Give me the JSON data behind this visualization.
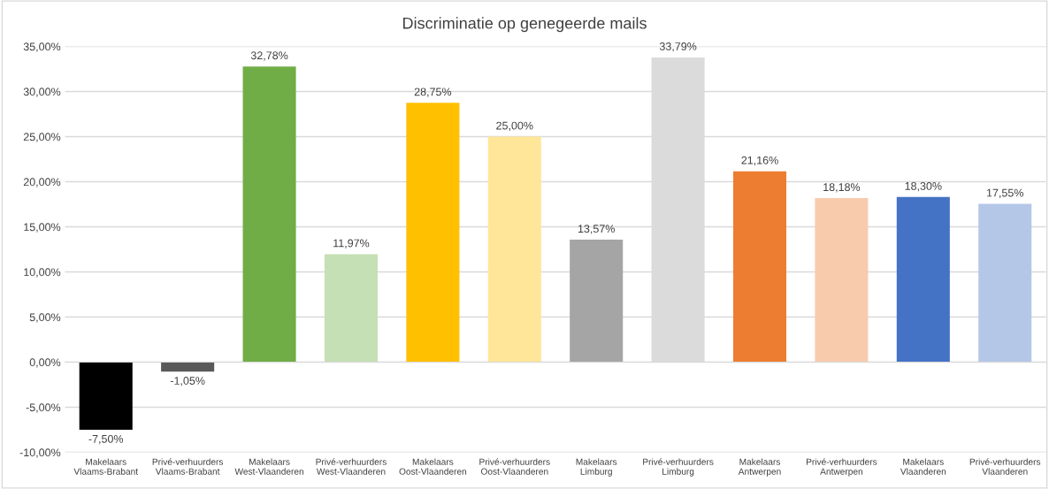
{
  "chart_data": {
    "type": "bar",
    "title": "Discriminatie op genegeerde mails",
    "categories": [
      "Makelaars Vlaams-Brabant",
      "Privé-verhuurders Vlaams-Brabant",
      "Makelaars West-Vlaanderen",
      "Privé-verhuurders West-Vlaanderen",
      "Makelaars Oost-Vlaanderen",
      "Privé-verhuurders Oost-Vlaanderen",
      "Makelaars Limburg",
      "Privé-verhuurders Limburg",
      "Makelaars Antwerpen",
      "Privé-verhuurders Antwerpen",
      "Makelaars Vlaanderen",
      "Privé-verhuurders Vlaanderen"
    ],
    "values": [
      -7.5,
      -1.05,
      32.78,
      11.97,
      28.75,
      25.0,
      13.57,
      33.79,
      21.16,
      18.18,
      18.3,
      17.55
    ],
    "value_labels": [
      "-7,50%",
      "-1,05%",
      "32,78%",
      "11,97%",
      "28,75%",
      "25,00%",
      "13,57%",
      "33,79%",
      "21,16%",
      "18,18%",
      "18,30%",
      "17,55%"
    ],
    "colors": [
      "#000000",
      "#595959",
      "#70ad47",
      "#c5e0b4",
      "#ffc000",
      "#ffe699",
      "#a5a5a5",
      "#dbdbdb",
      "#ed7d31",
      "#f8cbad",
      "#4472c4",
      "#b4c7e7"
    ],
    "ylim": [
      -10,
      35
    ],
    "yticks": [
      {
        "value": -10,
        "label": "-10,00%"
      },
      {
        "value": -5,
        "label": "-5,00%"
      },
      {
        "value": 0,
        "label": "0,00%"
      },
      {
        "value": 5,
        "label": "5,00%"
      },
      {
        "value": 10,
        "label": "10,00%"
      },
      {
        "value": 15,
        "label": "15,00%"
      },
      {
        "value": 20,
        "label": "20,00%"
      },
      {
        "value": 25,
        "label": "25,00%"
      },
      {
        "value": 30,
        "label": "30,00%"
      },
      {
        "value": 35,
        "label": "35,00%"
      }
    ],
    "grid": "y"
  }
}
